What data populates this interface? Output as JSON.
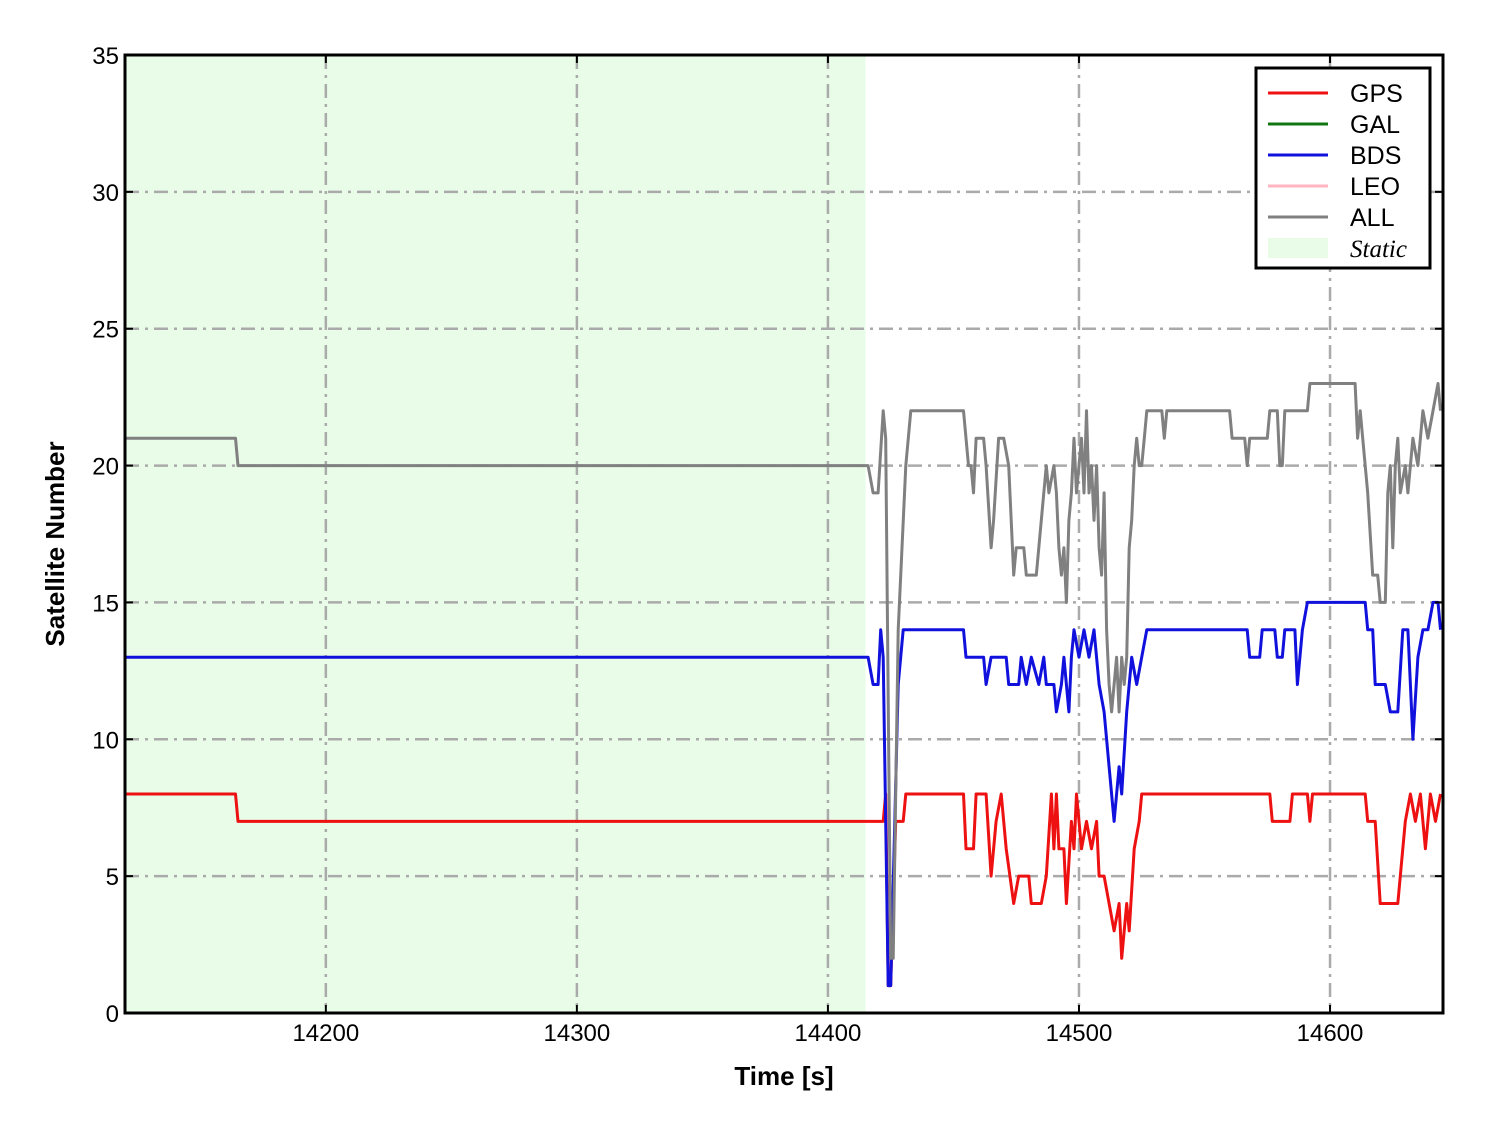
{
  "chart_data": {
    "type": "line",
    "title": "",
    "xlabel": "Time [s]",
    "ylabel": "Satellite Number",
    "xlim": [
      14120,
      14645
    ],
    "ylim": [
      0,
      35
    ],
    "xticks": [
      14200,
      14300,
      14400,
      14500,
      14600
    ],
    "yticks": [
      0,
      5,
      10,
      15,
      20,
      25,
      30,
      35
    ],
    "grid": true,
    "legend_position": "top-right",
    "shaded_region": {
      "label": "Static",
      "x": [
        14120,
        14415
      ],
      "color": "#e8fce8"
    },
    "series": [
      {
        "name": "GPS",
        "color": "#ee1111",
        "points": [
          [
            14120,
            8
          ],
          [
            14164,
            8
          ],
          [
            14165,
            7
          ],
          [
            14416,
            7
          ],
          [
            14422,
            7
          ],
          [
            14423,
            8
          ],
          [
            14424,
            1
          ],
          [
            14425,
            1
          ],
          [
            14427,
            7
          ],
          [
            14430,
            7
          ],
          [
            14431,
            8
          ],
          [
            14454,
            8
          ],
          [
            14455,
            6
          ],
          [
            14458,
            6
          ],
          [
            14459,
            8
          ],
          [
            14463,
            8
          ],
          [
            14465,
            5
          ],
          [
            14467,
            7
          ],
          [
            14469,
            8
          ],
          [
            14471,
            6
          ],
          [
            14474,
            4
          ],
          [
            14476,
            5
          ],
          [
            14480,
            5
          ],
          [
            14481,
            4
          ],
          [
            14485,
            4
          ],
          [
            14487,
            5
          ],
          [
            14489,
            8
          ],
          [
            14490,
            6
          ],
          [
            14491,
            8
          ],
          [
            14492,
            6
          ],
          [
            14494,
            6
          ],
          [
            14495,
            4
          ],
          [
            14497,
            7
          ],
          [
            14498,
            6
          ],
          [
            14499,
            8
          ],
          [
            14501,
            6
          ],
          [
            14503,
            7
          ],
          [
            14505,
            6
          ],
          [
            14507,
            7
          ],
          [
            14508,
            5
          ],
          [
            14510,
            5
          ],
          [
            14512,
            4
          ],
          [
            14514,
            3
          ],
          [
            14516,
            4
          ],
          [
            14517,
            2
          ],
          [
            14519,
            4
          ],
          [
            14520,
            3
          ],
          [
            14522,
            6
          ],
          [
            14524,
            7
          ],
          [
            14525,
            8
          ],
          [
            14576,
            8
          ],
          [
            14577,
            7
          ],
          [
            14584,
            7
          ],
          [
            14585,
            8
          ],
          [
            14591,
            8
          ],
          [
            14592,
            7
          ],
          [
            14593,
            8
          ],
          [
            14614,
            8
          ],
          [
            14615,
            7
          ],
          [
            14618,
            7
          ],
          [
            14620,
            4
          ],
          [
            14627,
            4
          ],
          [
            14629,
            6
          ],
          [
            14630,
            7
          ],
          [
            14632,
            8
          ],
          [
            14634,
            7
          ],
          [
            14636,
            8
          ],
          [
            14638,
            6
          ],
          [
            14640,
            8
          ],
          [
            14642,
            7
          ],
          [
            14644,
            8
          ]
        ]
      },
      {
        "name": "GAL",
        "color": "#117711",
        "points": []
      },
      {
        "name": "BDS",
        "color": "#1111dd",
        "points": [
          [
            14120,
            13
          ],
          [
            14416,
            13
          ],
          [
            14418,
            12
          ],
          [
            14420,
            12
          ],
          [
            14421,
            14
          ],
          [
            14422,
            13
          ],
          [
            14424,
            1
          ],
          [
            14425,
            1
          ],
          [
            14428,
            12
          ],
          [
            14430,
            14
          ],
          [
            14432,
            14
          ],
          [
            14433,
            14
          ],
          [
            14454,
            14
          ],
          [
            14455,
            13
          ],
          [
            14462,
            13
          ],
          [
            14463,
            12
          ],
          [
            14465,
            13
          ],
          [
            14471,
            13
          ],
          [
            14472,
            12
          ],
          [
            14476,
            12
          ],
          [
            14477,
            13
          ],
          [
            14479,
            12
          ],
          [
            14481,
            13
          ],
          [
            14484,
            12
          ],
          [
            14486,
            13
          ],
          [
            14487,
            12
          ],
          [
            14490,
            12
          ],
          [
            14491,
            11
          ],
          [
            14493,
            12
          ],
          [
            14494,
            13
          ],
          [
            14496,
            11
          ],
          [
            14497,
            13
          ],
          [
            14498,
            14
          ],
          [
            14500,
            13
          ],
          [
            14502,
            14
          ],
          [
            14504,
            13
          ],
          [
            14506,
            14
          ],
          [
            14508,
            12
          ],
          [
            14510,
            11
          ],
          [
            14512,
            9
          ],
          [
            14514,
            7
          ],
          [
            14516,
            9
          ],
          [
            14517,
            8
          ],
          [
            14519,
            11
          ],
          [
            14521,
            13
          ],
          [
            14523,
            12
          ],
          [
            14525,
            13
          ],
          [
            14527,
            14
          ],
          [
            14567,
            14
          ],
          [
            14568,
            13
          ],
          [
            14572,
            13
          ],
          [
            14573,
            14
          ],
          [
            14578,
            14
          ],
          [
            14579,
            13
          ],
          [
            14581,
            13
          ],
          [
            14582,
            14
          ],
          [
            14586,
            14
          ],
          [
            14587,
            12
          ],
          [
            14589,
            14
          ],
          [
            14591,
            15
          ],
          [
            14614,
            15
          ],
          [
            14615,
            14
          ],
          [
            14617,
            14
          ],
          [
            14618,
            12
          ],
          [
            14622,
            12
          ],
          [
            14624,
            11
          ],
          [
            14627,
            11
          ],
          [
            14629,
            14
          ],
          [
            14631,
            14
          ],
          [
            14633,
            10
          ],
          [
            14635,
            13
          ],
          [
            14637,
            14
          ],
          [
            14639,
            14
          ],
          [
            14641,
            15
          ],
          [
            14643,
            15
          ],
          [
            14644,
            14
          ]
        ]
      },
      {
        "name": "LEO",
        "color": "#ffb6c1",
        "points": []
      },
      {
        "name": "ALL",
        "color": "#808080",
        "points": [
          [
            14120,
            21
          ],
          [
            14164,
            21
          ],
          [
            14165,
            20
          ],
          [
            14416,
            20
          ],
          [
            14418,
            19
          ],
          [
            14420,
            19
          ],
          [
            14422,
            22
          ],
          [
            14423,
            21
          ],
          [
            14425,
            2
          ],
          [
            14426,
            2
          ],
          [
            14428,
            14
          ],
          [
            14431,
            20
          ],
          [
            14433,
            22
          ],
          [
            14454,
            22
          ],
          [
            14456,
            20
          ],
          [
            14457,
            20
          ],
          [
            14458,
            19
          ],
          [
            14459,
            21
          ],
          [
            14462,
            21
          ],
          [
            14463,
            20
          ],
          [
            14465,
            17
          ],
          [
            14466,
            18
          ],
          [
            14468,
            21
          ],
          [
            14470,
            21
          ],
          [
            14472,
            20
          ],
          [
            14474,
            16
          ],
          [
            14475,
            17
          ],
          [
            14478,
            17
          ],
          [
            14479,
            16
          ],
          [
            14483,
            16
          ],
          [
            14484,
            17
          ],
          [
            14486,
            19
          ],
          [
            14487,
            20
          ],
          [
            14488,
            19
          ],
          [
            14490,
            20
          ],
          [
            14491,
            19
          ],
          [
            14492,
            17
          ],
          [
            14493,
            16
          ],
          [
            14494,
            17
          ],
          [
            14495,
            15
          ],
          [
            14496,
            18
          ],
          [
            14497,
            19
          ],
          [
            14498,
            21
          ],
          [
            14499,
            19
          ],
          [
            14500,
            20
          ],
          [
            14501,
            21
          ],
          [
            14502,
            19
          ],
          [
            14503,
            22
          ],
          [
            14504,
            19
          ],
          [
            14505,
            20
          ],
          [
            14506,
            18
          ],
          [
            14507,
            20
          ],
          [
            14508,
            17
          ],
          [
            14509,
            16
          ],
          [
            14510,
            19
          ],
          [
            14511,
            14
          ],
          [
            14512,
            12
          ],
          [
            14513,
            11
          ],
          [
            14514,
            12
          ],
          [
            14515,
            13
          ],
          [
            14516,
            11
          ],
          [
            14517,
            13
          ],
          [
            14518,
            12
          ],
          [
            14519,
            13
          ],
          [
            14520,
            17
          ],
          [
            14521,
            18
          ],
          [
            14522,
            20
          ],
          [
            14523,
            21
          ],
          [
            14524,
            20
          ],
          [
            14525,
            20
          ],
          [
            14526,
            21
          ],
          [
            14527,
            22
          ],
          [
            14533,
            22
          ],
          [
            14534,
            21
          ],
          [
            14535,
            22
          ],
          [
            14560,
            22
          ],
          [
            14561,
            21
          ],
          [
            14566,
            21
          ],
          [
            14567,
            20
          ],
          [
            14568,
            21
          ],
          [
            14575,
            21
          ],
          [
            14576,
            22
          ],
          [
            14579,
            22
          ],
          [
            14580,
            20
          ],
          [
            14581,
            20
          ],
          [
            14582,
            22
          ],
          [
            14591,
            22
          ],
          [
            14592,
            23
          ],
          [
            14610,
            23
          ],
          [
            14611,
            21
          ],
          [
            14612,
            22
          ],
          [
            14613,
            21
          ],
          [
            14615,
            19
          ],
          [
            14617,
            16
          ],
          [
            14619,
            16
          ],
          [
            14620,
            15
          ],
          [
            14622,
            15
          ],
          [
            14623,
            19
          ],
          [
            14624,
            20
          ],
          [
            14625,
            17
          ],
          [
            14626,
            20
          ],
          [
            14627,
            21
          ],
          [
            14628,
            19
          ],
          [
            14630,
            20
          ],
          [
            14631,
            19
          ],
          [
            14633,
            21
          ],
          [
            14635,
            20
          ],
          [
            14637,
            22
          ],
          [
            14639,
            21
          ],
          [
            14641,
            22
          ],
          [
            14643,
            23
          ],
          [
            14644,
            22
          ]
        ]
      }
    ],
    "legend": [
      {
        "label": "GPS",
        "type": "line",
        "color": "#ee1111"
      },
      {
        "label": "GAL",
        "type": "line",
        "color": "#117711"
      },
      {
        "label": "BDS",
        "type": "line",
        "color": "#1111dd"
      },
      {
        "label": "LEO",
        "type": "line",
        "color": "#ffb6c1"
      },
      {
        "label": "ALL",
        "type": "line",
        "color": "#808080"
      },
      {
        "label": "Static",
        "type": "patch",
        "color": "#e8fce8"
      }
    ]
  }
}
